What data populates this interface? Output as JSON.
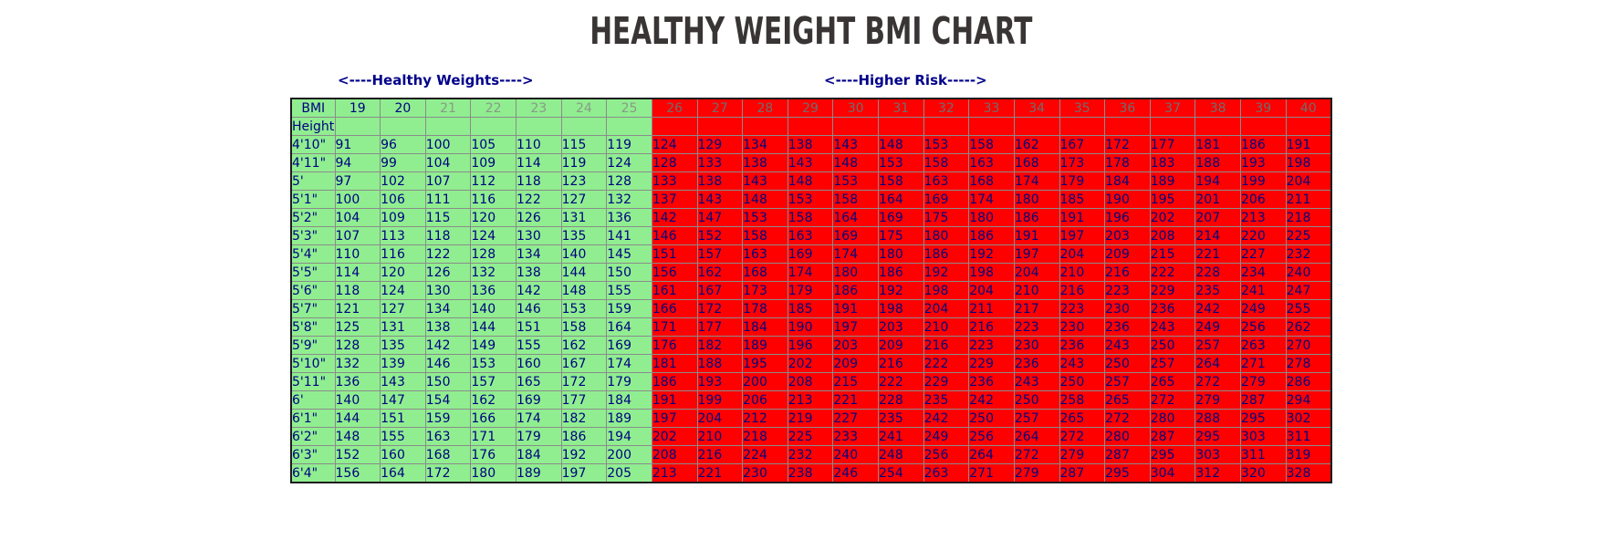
{
  "title": "HEALTHY WEIGHT BMI CHART",
  "labels": {
    "healthy": "<----Healthy Weights---->",
    "higher_risk": "<----Higher Risk----->"
  },
  "colors": {
    "healthy_bg": "#90EE90",
    "risk_bg": "#FF0000",
    "value_text": "#000080",
    "label_text": "#00008B",
    "title_text": "#383534",
    "grid_line": "#8B8B8B"
  },
  "chart_data": {
    "type": "table",
    "title": "HEALTHY WEIGHT BMI CHART",
    "corner_label": "BMI",
    "row_header_label": "Height",
    "healthy_bmi_max": 25,
    "bmi_columns": [
      19,
      20,
      21,
      22,
      23,
      24,
      25,
      26,
      27,
      28,
      29,
      30,
      31,
      32,
      33,
      34,
      35,
      36,
      37,
      38,
      39,
      40
    ],
    "rows": [
      {
        "height": "4'10\"",
        "weights": [
          91,
          96,
          100,
          105,
          110,
          115,
          119,
          124,
          129,
          134,
          138,
          143,
          148,
          153,
          158,
          162,
          167,
          172,
          177,
          181,
          186,
          191
        ]
      },
      {
        "height": "4'11\"",
        "weights": [
          94,
          99,
          104,
          109,
          114,
          119,
          124,
          128,
          133,
          138,
          143,
          148,
          153,
          158,
          163,
          168,
          173,
          178,
          183,
          188,
          193,
          198
        ]
      },
      {
        "height": "5'",
        "weights": [
          97,
          102,
          107,
          112,
          118,
          123,
          128,
          133,
          138,
          143,
          148,
          153,
          158,
          163,
          168,
          174,
          179,
          184,
          189,
          194,
          199,
          204
        ]
      },
      {
        "height": "5'1\"",
        "weights": [
          100,
          106,
          111,
          116,
          122,
          127,
          132,
          137,
          143,
          148,
          153,
          158,
          164,
          169,
          174,
          180,
          185,
          190,
          195,
          201,
          206,
          211
        ]
      },
      {
        "height": "5'2\"",
        "weights": [
          104,
          109,
          115,
          120,
          126,
          131,
          136,
          142,
          147,
          153,
          158,
          164,
          169,
          175,
          180,
          186,
          191,
          196,
          202,
          207,
          213,
          218
        ]
      },
      {
        "height": "5'3\"",
        "weights": [
          107,
          113,
          118,
          124,
          130,
          135,
          141,
          146,
          152,
          158,
          163,
          169,
          175,
          180,
          186,
          191,
          197,
          203,
          208,
          214,
          220,
          225
        ]
      },
      {
        "height": "5'4\"",
        "weights": [
          110,
          116,
          122,
          128,
          134,
          140,
          145,
          151,
          157,
          163,
          169,
          174,
          180,
          186,
          192,
          197,
          204,
          209,
          215,
          221,
          227,
          232
        ]
      },
      {
        "height": "5'5\"",
        "weights": [
          114,
          120,
          126,
          132,
          138,
          144,
          150,
          156,
          162,
          168,
          174,
          180,
          186,
          192,
          198,
          204,
          210,
          216,
          222,
          228,
          234,
          240
        ]
      },
      {
        "height": "5'6\"",
        "weights": [
          118,
          124,
          130,
          136,
          142,
          148,
          155,
          161,
          167,
          173,
          179,
          186,
          192,
          198,
          204,
          210,
          216,
          223,
          229,
          235,
          241,
          247
        ]
      },
      {
        "height": "5'7\"",
        "weights": [
          121,
          127,
          134,
          140,
          146,
          153,
          159,
          166,
          172,
          178,
          185,
          191,
          198,
          204,
          211,
          217,
          223,
          230,
          236,
          242,
          249,
          255
        ]
      },
      {
        "height": "5'8\"",
        "weights": [
          125,
          131,
          138,
          144,
          151,
          158,
          164,
          171,
          177,
          184,
          190,
          197,
          203,
          210,
          216,
          223,
          230,
          236,
          243,
          249,
          256,
          262
        ]
      },
      {
        "height": "5'9\"",
        "weights": [
          128,
          135,
          142,
          149,
          155,
          162,
          169,
          176,
          182,
          189,
          196,
          203,
          209,
          216,
          223,
          230,
          236,
          243,
          250,
          257,
          263,
          270
        ]
      },
      {
        "height": "5'10\"",
        "weights": [
          132,
          139,
          146,
          153,
          160,
          167,
          174,
          181,
          188,
          195,
          202,
          209,
          216,
          222,
          229,
          236,
          243,
          250,
          257,
          264,
          271,
          278
        ]
      },
      {
        "height": "5'11\"",
        "weights": [
          136,
          143,
          150,
          157,
          165,
          172,
          179,
          186,
          193,
          200,
          208,
          215,
          222,
          229,
          236,
          243,
          250,
          257,
          265,
          272,
          279,
          286
        ]
      },
      {
        "height": "6'",
        "weights": [
          140,
          147,
          154,
          162,
          169,
          177,
          184,
          191,
          199,
          206,
          213,
          221,
          228,
          235,
          242,
          250,
          258,
          265,
          272,
          279,
          287,
          294
        ]
      },
      {
        "height": "6'1\"",
        "weights": [
          144,
          151,
          159,
          166,
          174,
          182,
          189,
          197,
          204,
          212,
          219,
          227,
          235,
          242,
          250,
          257,
          265,
          272,
          280,
          288,
          295,
          302
        ]
      },
      {
        "height": "6'2\"",
        "weights": [
          148,
          155,
          163,
          171,
          179,
          186,
          194,
          202,
          210,
          218,
          225,
          233,
          241,
          249,
          256,
          264,
          272,
          280,
          287,
          295,
          303,
          311
        ]
      },
      {
        "height": "6'3\"",
        "weights": [
          152,
          160,
          168,
          176,
          184,
          192,
          200,
          208,
          216,
          224,
          232,
          240,
          248,
          256,
          264,
          272,
          279,
          287,
          295,
          303,
          311,
          319
        ]
      },
      {
        "height": "6'4\"",
        "weights": [
          156,
          164,
          172,
          180,
          189,
          197,
          205,
          213,
          221,
          230,
          238,
          246,
          254,
          263,
          271,
          279,
          287,
          295,
          304,
          312,
          320,
          328
        ]
      }
    ]
  }
}
